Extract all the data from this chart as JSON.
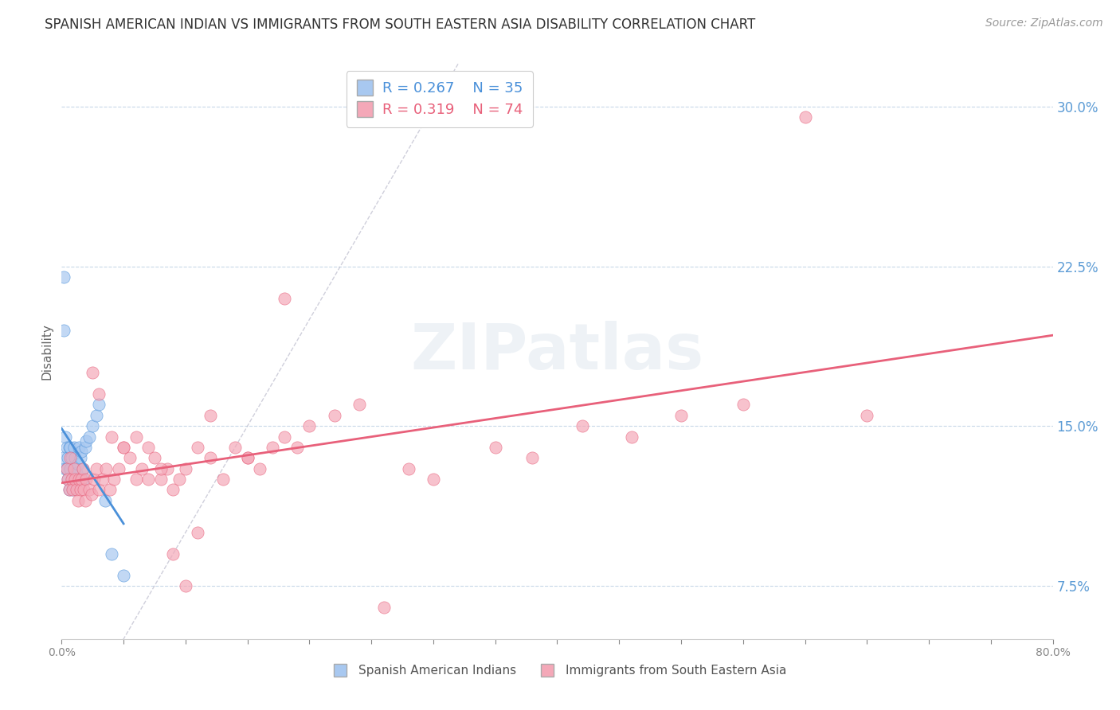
{
  "title": "SPANISH AMERICAN INDIAN VS IMMIGRANTS FROM SOUTH EASTERN ASIA DISABILITY CORRELATION CHART",
  "source": "Source: ZipAtlas.com",
  "ylabel": "Disability",
  "right_yticks": [
    0.075,
    0.15,
    0.225,
    0.3
  ],
  "right_yticklabels": [
    "7.5%",
    "15.0%",
    "22.5%",
    "30.0%"
  ],
  "xlim": [
    0.0,
    0.8
  ],
  "ylim": [
    0.05,
    0.32
  ],
  "legend_blue_r": "0.267",
  "legend_blue_n": "35",
  "legend_pink_r": "0.319",
  "legend_pink_n": "74",
  "legend_blue_label": "Spanish American Indians",
  "legend_pink_label": "Immigrants from South Eastern Asia",
  "blue_color": "#A8C8F0",
  "pink_color": "#F4A8B8",
  "trendline_blue_color": "#4A90D9",
  "trendline_pink_color": "#E8607A",
  "watermark_text": "ZIPatlas",
  "blue_scatter_x": [
    0.001,
    0.002,
    0.002,
    0.003,
    0.003,
    0.004,
    0.004,
    0.005,
    0.005,
    0.006,
    0.006,
    0.007,
    0.007,
    0.008,
    0.008,
    0.009,
    0.01,
    0.01,
    0.011,
    0.012,
    0.013,
    0.014,
    0.015,
    0.016,
    0.017,
    0.018,
    0.019,
    0.02,
    0.022,
    0.025,
    0.028,
    0.03,
    0.035,
    0.04,
    0.05
  ],
  "blue_scatter_y": [
    0.135,
    0.22,
    0.195,
    0.145,
    0.13,
    0.14,
    0.13,
    0.125,
    0.135,
    0.14,
    0.12,
    0.13,
    0.14,
    0.135,
    0.125,
    0.12,
    0.13,
    0.14,
    0.135,
    0.128,
    0.132,
    0.14,
    0.135,
    0.138,
    0.13,
    0.125,
    0.14,
    0.143,
    0.145,
    0.15,
    0.155,
    0.16,
    0.115,
    0.09,
    0.08
  ],
  "pink_scatter_x": [
    0.004,
    0.005,
    0.006,
    0.007,
    0.008,
    0.009,
    0.01,
    0.011,
    0.012,
    0.013,
    0.014,
    0.015,
    0.016,
    0.017,
    0.018,
    0.019,
    0.02,
    0.022,
    0.024,
    0.026,
    0.028,
    0.03,
    0.033,
    0.036,
    0.039,
    0.042,
    0.046,
    0.05,
    0.055,
    0.06,
    0.065,
    0.07,
    0.075,
    0.08,
    0.085,
    0.09,
    0.095,
    0.1,
    0.11,
    0.12,
    0.13,
    0.14,
    0.15,
    0.16,
    0.17,
    0.18,
    0.19,
    0.2,
    0.22,
    0.24,
    0.26,
    0.28,
    0.3,
    0.35,
    0.38,
    0.42,
    0.46,
    0.5,
    0.55,
    0.6,
    0.025,
    0.03,
    0.04,
    0.05,
    0.06,
    0.07,
    0.08,
    0.09,
    0.1,
    0.11,
    0.12,
    0.15,
    0.18,
    0.65
  ],
  "pink_scatter_y": [
    0.13,
    0.125,
    0.12,
    0.135,
    0.125,
    0.12,
    0.13,
    0.125,
    0.12,
    0.115,
    0.125,
    0.12,
    0.125,
    0.13,
    0.12,
    0.115,
    0.125,
    0.12,
    0.118,
    0.125,
    0.13,
    0.12,
    0.125,
    0.13,
    0.12,
    0.125,
    0.13,
    0.14,
    0.135,
    0.125,
    0.13,
    0.14,
    0.135,
    0.125,
    0.13,
    0.12,
    0.125,
    0.13,
    0.14,
    0.135,
    0.125,
    0.14,
    0.135,
    0.13,
    0.14,
    0.145,
    0.14,
    0.15,
    0.155,
    0.16,
    0.065,
    0.13,
    0.125,
    0.14,
    0.135,
    0.15,
    0.145,
    0.155,
    0.16,
    0.295,
    0.175,
    0.165,
    0.145,
    0.14,
    0.145,
    0.125,
    0.13,
    0.09,
    0.075,
    0.1,
    0.155,
    0.135,
    0.21,
    0.155
  ]
}
